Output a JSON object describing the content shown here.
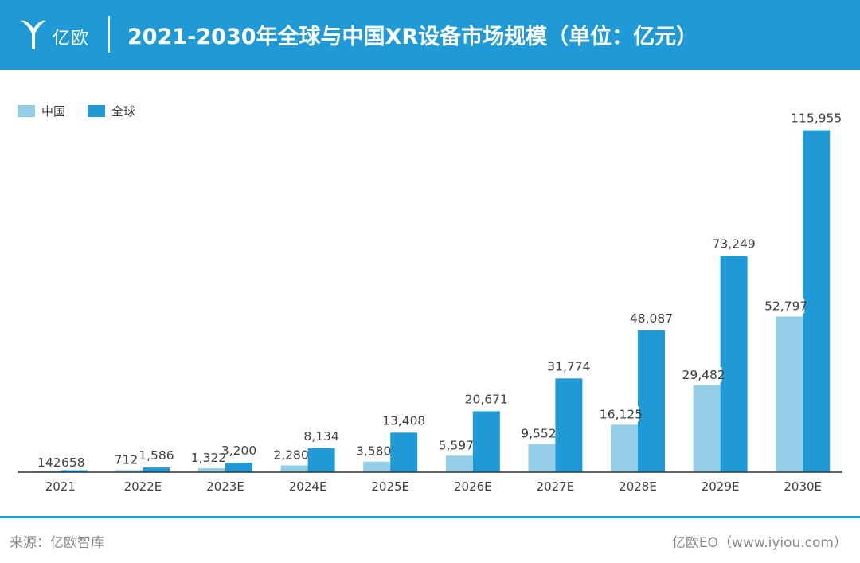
{
  "header": {
    "logo_text": "亿欧",
    "title": "2021-2030年全球与中国XR设备市场规模（单位：亿元）"
  },
  "colors": {
    "header_bg": "#1f9ad6",
    "china": "#93cde6",
    "global": "#1f9ad6"
  },
  "chart_data": {
    "type": "bar",
    "title": "2021-2030年全球与中国XR设备市场规模（单位：亿元）",
    "categories": [
      "2021",
      "2022E",
      "2023E",
      "2024E",
      "2025E",
      "2026E",
      "2027E",
      "2028E",
      "2029E",
      "2030E"
    ],
    "series": [
      {
        "name": "中国",
        "values": [
          142,
          712,
          1322,
          2280,
          3580,
          5597,
          9552,
          16125,
          29482,
          52797
        ],
        "labels": [
          "142",
          "712",
          "1,322",
          "2,280",
          "3,580",
          "5,597",
          "9,552",
          "16,125",
          "29,482",
          "52,797"
        ]
      },
      {
        "name": "全球",
        "values": [
          658,
          1586,
          3200,
          8134,
          13408,
          20671,
          31774,
          48087,
          73249,
          115955
        ],
        "labels": [
          "658",
          "1,586",
          "3,200",
          "8,134",
          "13,408",
          "20,671",
          "31,774",
          "48,087",
          "73,249",
          "115,955"
        ]
      }
    ],
    "legend_position": "top-left",
    "grid": false,
    "ylim": [
      0,
      118000
    ]
  },
  "footer": {
    "source": "来源：亿欧智库",
    "credit": "亿欧EO（www.iyiou.com）"
  }
}
